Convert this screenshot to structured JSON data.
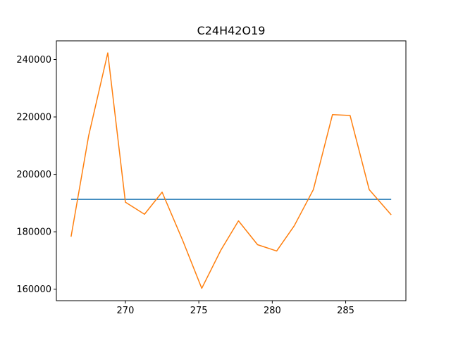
{
  "chart_data": {
    "type": "line",
    "title": "C24H42O19",
    "xlabel": "",
    "ylabel": "",
    "xlim": [
      265.3,
      289.1
    ],
    "ylim": [
      156000,
      246500
    ],
    "x_ticks": [
      270,
      275,
      280,
      285
    ],
    "x_tick_labels": [
      "270",
      "275",
      "280",
      "285"
    ],
    "y_ticks": [
      160000,
      180000,
      200000,
      220000,
      240000
    ],
    "y_tick_labels": [
      "160000",
      "180000",
      "200000",
      "220000",
      "240000"
    ],
    "grid": false,
    "legend": false,
    "series": [
      {
        "color": "#1f77b4",
        "x": [
          266.3,
          288.1
        ],
        "y": [
          191300,
          191300
        ]
      },
      {
        "color": "#ff7f0e",
        "x": [
          266.3,
          267.5,
          268.8,
          270.0,
          271.3,
          272.5,
          273.9,
          275.2,
          276.5,
          277.7,
          279.0,
          280.3,
          281.5,
          282.8,
          284.1,
          285.3,
          286.6,
          288.1
        ],
        "y": [
          178300,
          213500,
          242300,
          190300,
          186100,
          193800,
          177000,
          160300,
          173600,
          183800,
          175500,
          173300,
          182100,
          194700,
          220800,
          220500,
          194700,
          185900
        ]
      }
    ]
  }
}
